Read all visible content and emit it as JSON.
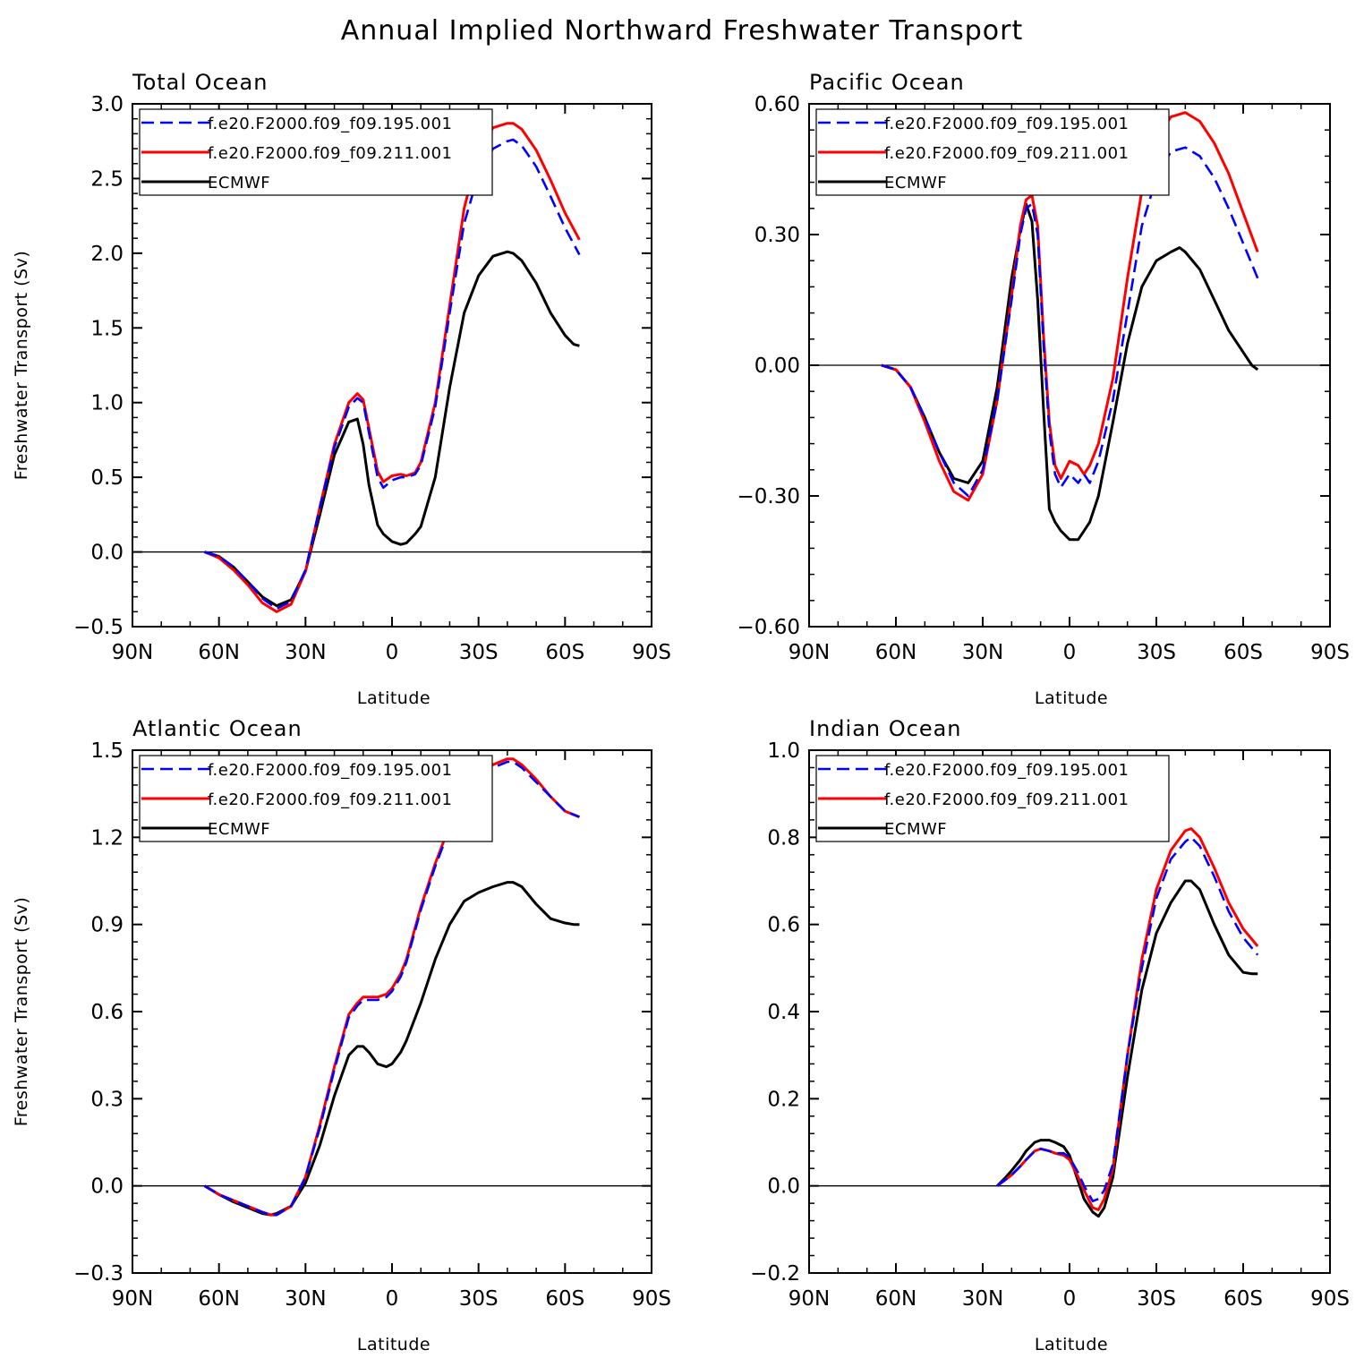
{
  "title": "Annual Implied Northward Freshwater Transport",
  "colors": {
    "f.e20.F2000.f09_f09.195.001": "#0000ff",
    "f.e20.F2000.f09_f09.211.001": "#ff0000",
    "ECMWF": "#000000"
  },
  "chart_data": [
    {
      "type": "line",
      "title": "Total Ocean",
      "xlabel": "Latitude",
      "ylabel": "Freshwater Transport (Sv)",
      "x_direction": "north-to-south",
      "xlim": [
        90,
        -90
      ],
      "xticks": [
        90,
        60,
        30,
        0,
        -30,
        -60,
        -90
      ],
      "xtick_labels": [
        "90N",
        "60N",
        "30N",
        "0",
        "30S",
        "60S",
        "90S"
      ],
      "ylim": [
        -0.5,
        3.0
      ],
      "yticks": [
        -0.5,
        0.0,
        0.5,
        1.0,
        1.5,
        2.0,
        2.5,
        3.0
      ],
      "ytick_labels": [
        "−0.5",
        "0.0",
        "0.5",
        "1.0",
        "1.5",
        "2.0",
        "2.5",
        "3.0"
      ],
      "zero_line": true,
      "legend": "top-left",
      "series": [
        {
          "name": "f.e20.F2000.f09_f09.195.001",
          "style": "dashed",
          "x": [
            65,
            60,
            55,
            50,
            45,
            40,
            35,
            30,
            25,
            20,
            15,
            12,
            10,
            8,
            5,
            3,
            0,
            -3,
            -5,
            -8,
            -10,
            -15,
            -20,
            -25,
            -30,
            -35,
            -40,
            -42,
            -45,
            -50,
            -55,
            -60,
            -65
          ],
          "y": [
            0.0,
            -0.03,
            -0.1,
            -0.2,
            -0.31,
            -0.38,
            -0.33,
            -0.12,
            0.3,
            0.7,
            0.97,
            1.03,
            1.0,
            0.8,
            0.5,
            0.43,
            0.48,
            0.5,
            0.5,
            0.52,
            0.58,
            0.97,
            1.6,
            2.2,
            2.53,
            2.7,
            2.75,
            2.76,
            2.72,
            2.58,
            2.38,
            2.17,
            1.99
          ]
        },
        {
          "name": "f.e20.F2000.f09_f09.211.001",
          "style": "solid",
          "x": [
            65,
            60,
            55,
            50,
            45,
            40,
            35,
            30,
            25,
            20,
            15,
            12,
            10,
            8,
            5,
            3,
            0,
            -3,
            -5,
            -8,
            -10,
            -15,
            -20,
            -25,
            -30,
            -35,
            -40,
            -42,
            -45,
            -50,
            -55,
            -60,
            -65
          ],
          "y": [
            0.0,
            -0.04,
            -0.12,
            -0.22,
            -0.34,
            -0.4,
            -0.35,
            -0.13,
            0.3,
            0.72,
            1.0,
            1.06,
            1.02,
            0.83,
            0.54,
            0.47,
            0.51,
            0.52,
            0.51,
            0.53,
            0.6,
            1.0,
            1.65,
            2.3,
            2.68,
            2.84,
            2.87,
            2.87,
            2.83,
            2.69,
            2.49,
            2.27,
            2.09
          ]
        },
        {
          "name": "ECMWF",
          "style": "solid",
          "x": [
            65,
            60,
            55,
            50,
            45,
            40,
            35,
            30,
            25,
            20,
            15,
            12,
            10,
            8,
            5,
            3,
            0,
            -3,
            -5,
            -8,
            -10,
            -15,
            -20,
            -25,
            -30,
            -35,
            -40,
            -42,
            -45,
            -50,
            -55,
            -60,
            -63,
            -65
          ],
          "y": [
            0.0,
            -0.03,
            -0.1,
            -0.2,
            -0.3,
            -0.36,
            -0.32,
            -0.13,
            0.25,
            0.65,
            0.87,
            0.89,
            0.72,
            0.45,
            0.18,
            0.12,
            0.07,
            0.05,
            0.06,
            0.12,
            0.17,
            0.5,
            1.1,
            1.6,
            1.85,
            1.98,
            2.01,
            2.0,
            1.95,
            1.8,
            1.6,
            1.45,
            1.39,
            1.38
          ]
        }
      ]
    },
    {
      "type": "line",
      "title": "Pacific Ocean",
      "xlabel": "Latitude",
      "ylabel": "",
      "x_direction": "north-to-south",
      "xlim": [
        90,
        -90
      ],
      "xticks": [
        90,
        60,
        30,
        0,
        -30,
        -60,
        -90
      ],
      "xtick_labels": [
        "90N",
        "60N",
        "30N",
        "0",
        "30S",
        "60S",
        "90S"
      ],
      "ylim": [
        -0.6,
        0.6
      ],
      "yticks": [
        -0.6,
        -0.3,
        0.0,
        0.3,
        0.6
      ],
      "ytick_labels": [
        "−0.60",
        "−0.30",
        "0.00",
        "0.30",
        "0.60"
      ],
      "zero_line": true,
      "legend": "top-left",
      "series": [
        {
          "name": "f.e20.F2000.f09_f09.195.001",
          "style": "dashed",
          "x": [
            65,
            60,
            55,
            50,
            45,
            40,
            35,
            30,
            25,
            20,
            17,
            15,
            13,
            11,
            9,
            7,
            5,
            3,
            0,
            -3,
            -5,
            -7,
            -10,
            -15,
            -20,
            -25,
            -30,
            -35,
            -40,
            -45,
            -50,
            -55,
            -60,
            -65
          ],
          "y": [
            0.0,
            -0.01,
            -0.05,
            -0.12,
            -0.2,
            -0.27,
            -0.3,
            -0.24,
            -0.08,
            0.15,
            0.3,
            0.36,
            0.37,
            0.3,
            0.05,
            -0.15,
            -0.25,
            -0.28,
            -0.25,
            -0.27,
            -0.25,
            -0.27,
            -0.22,
            -0.08,
            0.12,
            0.32,
            0.43,
            0.49,
            0.5,
            0.48,
            0.43,
            0.36,
            0.28,
            0.2
          ]
        },
        {
          "name": "f.e20.F2000.f09_f09.211.001",
          "style": "solid",
          "x": [
            65,
            60,
            55,
            50,
            45,
            40,
            35,
            30,
            25,
            20,
            17,
            15,
            13,
            11,
            9,
            7,
            5,
            3,
            0,
            -3,
            -5,
            -7,
            -10,
            -15,
            -20,
            -25,
            -30,
            -35,
            -40,
            -45,
            -50,
            -55,
            -60,
            -65
          ],
          "y": [
            0.0,
            -0.01,
            -0.05,
            -0.13,
            -0.22,
            -0.29,
            -0.31,
            -0.25,
            -0.08,
            0.16,
            0.32,
            0.38,
            0.39,
            0.32,
            0.07,
            -0.13,
            -0.23,
            -0.26,
            -0.22,
            -0.23,
            -0.25,
            -0.23,
            -0.18,
            -0.03,
            0.2,
            0.4,
            0.52,
            0.57,
            0.58,
            0.56,
            0.51,
            0.44,
            0.35,
            0.26
          ]
        },
        {
          "name": "ECMWF",
          "style": "solid",
          "x": [
            65,
            60,
            55,
            50,
            45,
            40,
            35,
            30,
            25,
            20,
            17,
            15,
            13,
            11,
            9,
            7,
            5,
            3,
            0,
            -3,
            -5,
            -7,
            -10,
            -15,
            -20,
            -25,
            -30,
            -35,
            -38,
            -40,
            -45,
            -50,
            -55,
            -60,
            -63,
            -65
          ],
          "y": [
            0.0,
            -0.01,
            -0.05,
            -0.12,
            -0.2,
            -0.26,
            -0.27,
            -0.22,
            -0.05,
            0.2,
            0.31,
            0.37,
            0.33,
            0.15,
            -0.1,
            -0.33,
            -0.36,
            -0.38,
            -0.4,
            -0.4,
            -0.38,
            -0.36,
            -0.3,
            -0.13,
            0.05,
            0.18,
            0.24,
            0.26,
            0.27,
            0.26,
            0.22,
            0.15,
            0.08,
            0.03,
            0.0,
            -0.01
          ]
        }
      ]
    },
    {
      "type": "line",
      "title": "Atlantic Ocean",
      "xlabel": "Latitude",
      "ylabel": "Freshwater Transport (Sv)",
      "x_direction": "north-to-south",
      "xlim": [
        90,
        -90
      ],
      "xticks": [
        90,
        60,
        30,
        0,
        -30,
        -60,
        -90
      ],
      "xtick_labels": [
        "90N",
        "60N",
        "30N",
        "0",
        "30S",
        "60S",
        "90S"
      ],
      "ylim": [
        -0.3,
        1.5
      ],
      "yticks": [
        -0.3,
        0.0,
        0.3,
        0.6,
        0.9,
        1.2,
        1.5
      ],
      "ytick_labels": [
        "−0.3",
        "0.0",
        "0.3",
        "0.6",
        "0.9",
        "1.2",
        "1.5"
      ],
      "zero_line": true,
      "legend": "top-left",
      "series": [
        {
          "name": "f.e20.F2000.f09_f09.195.001",
          "style": "dashed",
          "x": [
            65,
            60,
            55,
            50,
            45,
            42,
            40,
            35,
            30,
            25,
            20,
            15,
            12,
            10,
            8,
            5,
            2,
            0,
            -3,
            -5,
            -10,
            -15,
            -20,
            -25,
            -30,
            -35,
            -40,
            -42,
            -45,
            -50,
            -55,
            -60,
            -65
          ],
          "y": [
            0.0,
            -0.03,
            -0.05,
            -0.07,
            -0.09,
            -0.1,
            -0.1,
            -0.07,
            0.03,
            0.2,
            0.4,
            0.58,
            0.62,
            0.64,
            0.64,
            0.64,
            0.65,
            0.67,
            0.72,
            0.77,
            0.95,
            1.1,
            1.23,
            1.33,
            1.4,
            1.44,
            1.46,
            1.46,
            1.44,
            1.39,
            1.34,
            1.29,
            1.27
          ]
        },
        {
          "name": "f.e20.F2000.f09_f09.211.001",
          "style": "solid",
          "x": [
            65,
            60,
            55,
            50,
            45,
            42,
            40,
            35,
            30,
            25,
            20,
            15,
            12,
            10,
            8,
            5,
            2,
            0,
            -3,
            -5,
            -10,
            -15,
            -20,
            -25,
            -30,
            -35,
            -40,
            -42,
            -45,
            -50,
            -55,
            -60,
            -65
          ],
          "y": [
            0.0,
            -0.03,
            -0.05,
            -0.07,
            -0.09,
            -0.1,
            -0.1,
            -0.07,
            0.03,
            0.21,
            0.41,
            0.59,
            0.63,
            0.65,
            0.65,
            0.65,
            0.66,
            0.68,
            0.73,
            0.78,
            0.96,
            1.11,
            1.24,
            1.34,
            1.41,
            1.45,
            1.47,
            1.47,
            1.45,
            1.4,
            1.34,
            1.29,
            1.27
          ]
        },
        {
          "name": "ECMWF",
          "style": "solid",
          "x": [
            65,
            60,
            55,
            50,
            45,
            42,
            40,
            35,
            30,
            25,
            20,
            15,
            12,
            10,
            8,
            5,
            2,
            0,
            -3,
            -5,
            -10,
            -15,
            -20,
            -25,
            -30,
            -35,
            -40,
            -42,
            -45,
            -50,
            -55,
            -60,
            -63,
            -65
          ],
          "y": [
            0.0,
            -0.03,
            -0.055,
            -0.075,
            -0.095,
            -0.1,
            -0.095,
            -0.07,
            0.01,
            0.14,
            0.31,
            0.45,
            0.48,
            0.48,
            0.46,
            0.42,
            0.41,
            0.42,
            0.46,
            0.5,
            0.63,
            0.78,
            0.9,
            0.98,
            1.01,
            1.03,
            1.045,
            1.045,
            1.03,
            0.97,
            0.92,
            0.905,
            0.9,
            0.9
          ]
        }
      ]
    },
    {
      "type": "line",
      "title": "Indian Ocean",
      "xlabel": "Latitude",
      "ylabel": "",
      "x_direction": "north-to-south",
      "xlim": [
        90,
        -90
      ],
      "xticks": [
        90,
        60,
        30,
        0,
        -30,
        -60,
        -90
      ],
      "xtick_labels": [
        "90N",
        "60N",
        "30N",
        "0",
        "30S",
        "60S",
        "90S"
      ],
      "ylim": [
        -0.2,
        1.0
      ],
      "yticks": [
        -0.2,
        0.0,
        0.2,
        0.4,
        0.6,
        0.8,
        1.0
      ],
      "ytick_labels": [
        "−0.2",
        "0.0",
        "0.2",
        "0.4",
        "0.6",
        "0.8",
        "1.0"
      ],
      "zero_line": true,
      "legend": "top-left",
      "series": [
        {
          "name": "f.e20.F2000.f09_f09.195.001",
          "style": "dashed",
          "x": [
            25,
            22,
            20,
            17,
            15,
            12,
            10,
            7,
            5,
            2,
            0,
            -3,
            -5,
            -8,
            -10,
            -12,
            -15,
            -20,
            -25,
            -30,
            -35,
            -40,
            -42,
            -45,
            -50,
            -55,
            -60,
            -65
          ],
          "y": [
            0.0,
            0.015,
            0.025,
            0.045,
            0.06,
            0.08,
            0.085,
            0.08,
            0.075,
            0.075,
            0.065,
            0.03,
            0.0,
            -0.035,
            -0.03,
            -0.01,
            0.05,
            0.3,
            0.5,
            0.66,
            0.75,
            0.79,
            0.8,
            0.78,
            0.71,
            0.63,
            0.57,
            0.53
          ]
        },
        {
          "name": "f.e20.F2000.f09_f09.211.001",
          "style": "solid",
          "x": [
            25,
            22,
            20,
            17,
            15,
            12,
            10,
            7,
            5,
            2,
            0,
            -3,
            -5,
            -8,
            -10,
            -12,
            -15,
            -20,
            -25,
            -30,
            -35,
            -40,
            -42,
            -45,
            -50,
            -55,
            -60,
            -65
          ],
          "y": [
            0.0,
            0.015,
            0.025,
            0.045,
            0.06,
            0.08,
            0.085,
            0.08,
            0.075,
            0.07,
            0.06,
            0.02,
            -0.01,
            -0.05,
            -0.055,
            -0.03,
            0.04,
            0.3,
            0.52,
            0.68,
            0.77,
            0.815,
            0.82,
            0.8,
            0.73,
            0.65,
            0.59,
            0.55
          ]
        },
        {
          "name": "ECMWF",
          "style": "solid",
          "x": [
            25,
            22,
            20,
            17,
            15,
            12,
            10,
            7,
            5,
            2,
            0,
            -3,
            -5,
            -8,
            -10,
            -12,
            -15,
            -20,
            -25,
            -30,
            -35,
            -40,
            -42,
            -45,
            -50,
            -55,
            -60,
            -63,
            -65
          ],
          "y": [
            0.0,
            0.02,
            0.035,
            0.06,
            0.08,
            0.1,
            0.105,
            0.105,
            0.1,
            0.09,
            0.07,
            0.01,
            -0.03,
            -0.06,
            -0.07,
            -0.05,
            0.02,
            0.25,
            0.45,
            0.58,
            0.65,
            0.7,
            0.7,
            0.68,
            0.6,
            0.53,
            0.49,
            0.487,
            0.487
          ]
        }
      ]
    }
  ]
}
